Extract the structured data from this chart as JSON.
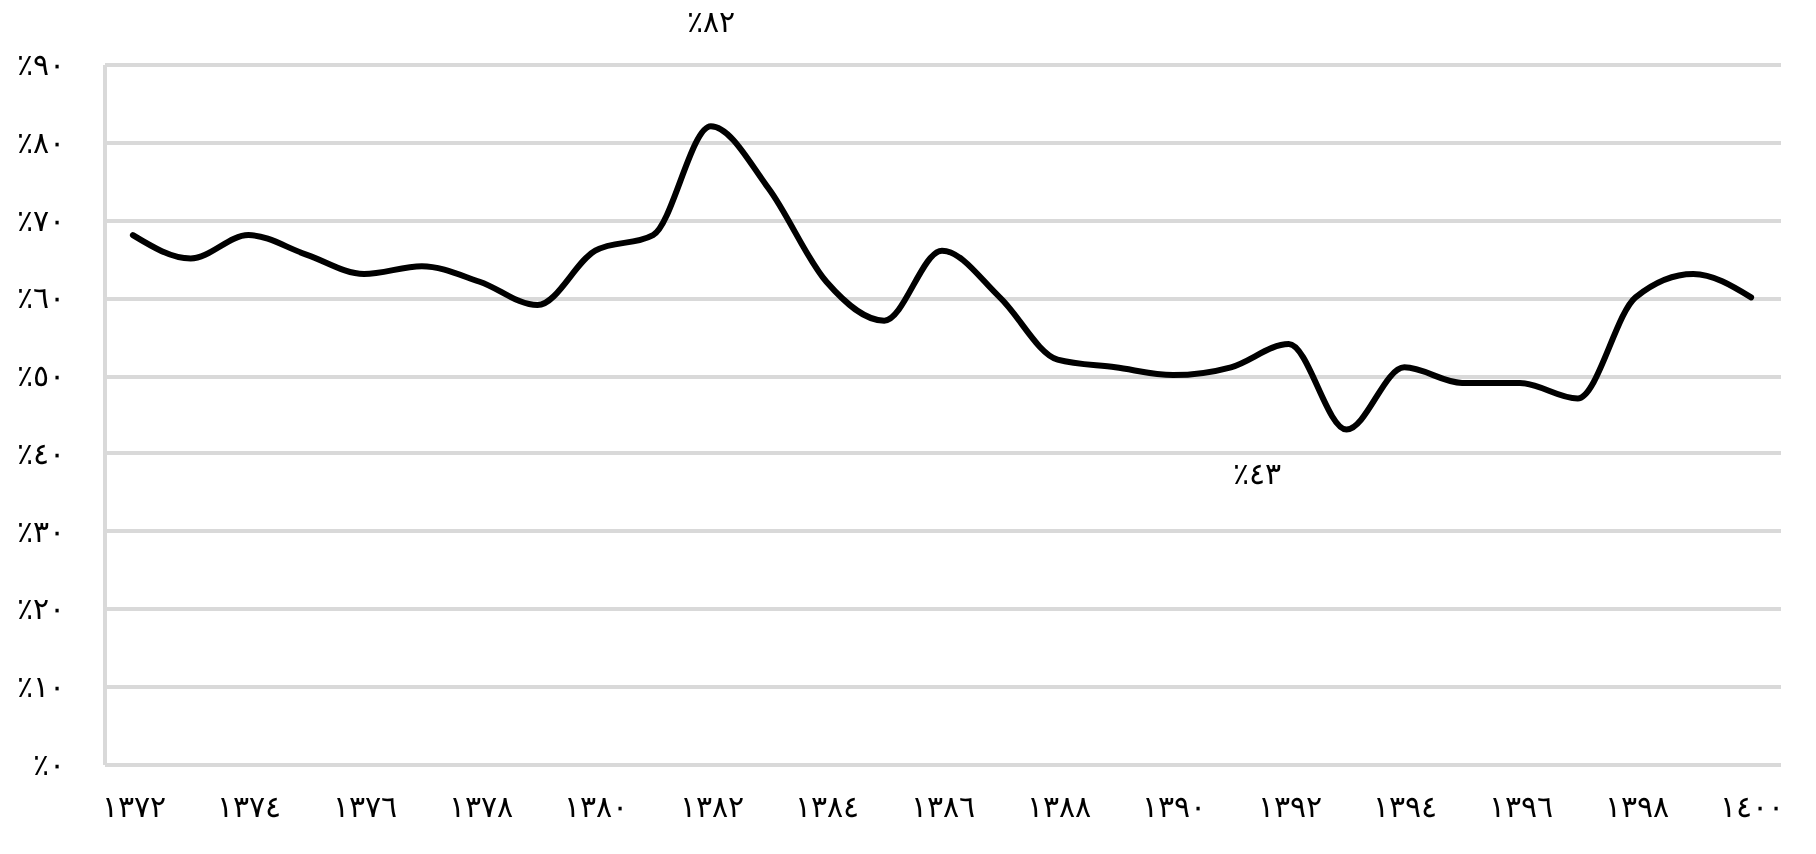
{
  "chart_data": {
    "type": "line",
    "x": [
      1372,
      1373,
      1374,
      1375,
      1376,
      1377,
      1378,
      1379,
      1380,
      1381,
      1382,
      1383,
      1384,
      1385,
      1386,
      1387,
      1388,
      1389,
      1390,
      1391,
      1392,
      1393,
      1394,
      1395,
      1396,
      1397,
      1398,
      1399,
      1400
    ],
    "series": [
      {
        "color": "#000000",
        "values": [
          68,
          65,
          68,
          65.5,
          63,
          64,
          62,
          59,
          66,
          68,
          82,
          74,
          62,
          57,
          66,
          60,
          52,
          51,
          50,
          51,
          54,
          43,
          51,
          49,
          49,
          47,
          60,
          63,
          60
        ]
      }
    ],
    "xlim": [
      1371.5,
      1400.5
    ],
    "xticks": [
      {
        "value": 1372,
        "label": "١٣٧٢"
      },
      {
        "value": 1374,
        "label": "١٣٧٤"
      },
      {
        "value": 1376,
        "label": "١٣٧٦"
      },
      {
        "value": 1378,
        "label": "١٣٧٨"
      },
      {
        "value": 1380,
        "label": "١٣٨٠"
      },
      {
        "value": 1382,
        "label": "١٣٨٢"
      },
      {
        "value": 1384,
        "label": "١٣٨٤"
      },
      {
        "value": 1386,
        "label": "١٣٨٦"
      },
      {
        "value": 1388,
        "label": "١٣٨٨"
      },
      {
        "value": 1390,
        "label": "١٣٩٠"
      },
      {
        "value": 1392,
        "label": "١٣٩٢"
      },
      {
        "value": 1394,
        "label": "١٣٩٤"
      },
      {
        "value": 1396,
        "label": "١٣٩٦"
      },
      {
        "value": 1398,
        "label": "١٣٩٨"
      },
      {
        "value": 1400,
        "label": "١٤٠٠"
      }
    ],
    "ylim": [
      0,
      90
    ],
    "yticks": [
      {
        "value": 0,
        "label": "٪٠"
      },
      {
        "value": 10,
        "label": "٪١٠"
      },
      {
        "value": 20,
        "label": "٪٢٠"
      },
      {
        "value": 30,
        "label": "٪٣٠"
      },
      {
        "value": 40,
        "label": "٪٤٠"
      },
      {
        "value": 50,
        "label": "٪٥٠"
      },
      {
        "value": 60,
        "label": "٪٦٠"
      },
      {
        "value": 70,
        "label": "٪٧٠"
      },
      {
        "value": 80,
        "label": "٪٨٠"
      },
      {
        "value": 90,
        "label": "٪٩٠"
      }
    ],
    "grid": "y",
    "legend": false,
    "marker": "none",
    "line_style": "solid",
    "annotations": [
      {
        "text": "٪٨٢",
        "x": 1382,
        "y": 82
      },
      {
        "text": "٪٤٣",
        "x": 1393,
        "y": 43
      }
    ]
  }
}
